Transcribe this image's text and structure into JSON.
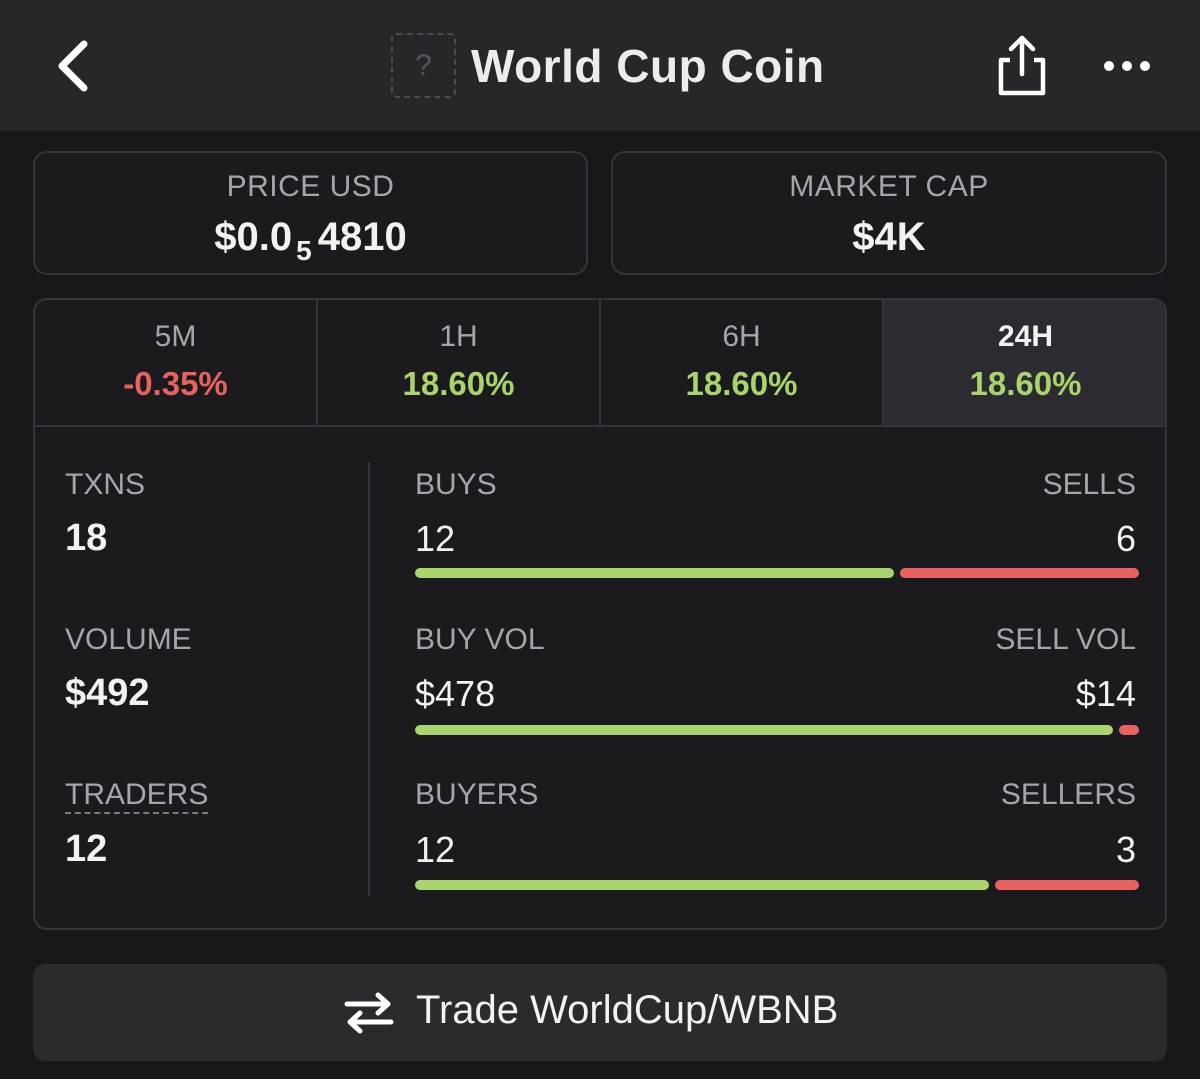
{
  "header": {
    "title": "World Cup Coin",
    "token_image_placeholder": "?",
    "icons": {
      "back": "chevron-left-icon",
      "share": "share-icon",
      "more": "more-horizontal-icon"
    }
  },
  "price": {
    "label": "PRICE USD",
    "prefix": "$0.0",
    "zeros_subscript": "5",
    "digits": "4810"
  },
  "market_cap": {
    "label": "MARKET CAP",
    "value": "$4K"
  },
  "timeframes": [
    {
      "label": "5M",
      "change": "-0.35%",
      "direction": "negative"
    },
    {
      "label": "1H",
      "change": "18.60%",
      "direction": "positive"
    },
    {
      "label": "6H",
      "change": "18.60%",
      "direction": "positive"
    },
    {
      "label": "24H",
      "change": "18.60%",
      "direction": "positive",
      "selected": true
    }
  ],
  "metrics": {
    "txns": {
      "label": "TXNS",
      "value": "18"
    },
    "volume": {
      "label": "VOLUME",
      "value": "$492"
    },
    "traders": {
      "label": "TRADERS",
      "value": "12"
    }
  },
  "pairs": {
    "transactions": {
      "left_label": "BUYS",
      "left_value": "12",
      "right_label": "SELLS",
      "right_value": "6",
      "buy_share": 0.667
    },
    "volume": {
      "left_label": "BUY VOL",
      "left_value": "$478",
      "right_label": "SELL VOL",
      "right_value": "$14",
      "buy_share": 0.972
    },
    "traders": {
      "left_label": "BUYERS",
      "left_value": "12",
      "right_label": "SELLERS",
      "right_value": "3",
      "buy_share": 0.8
    }
  },
  "trade_button": {
    "label": "Trade WorldCup/WBNB",
    "icon": "swap-arrows-icon"
  },
  "colors": {
    "positive": "#a9d46b",
    "negative": "#e8625f",
    "background": "#18181c",
    "header": "#26262b"
  }
}
